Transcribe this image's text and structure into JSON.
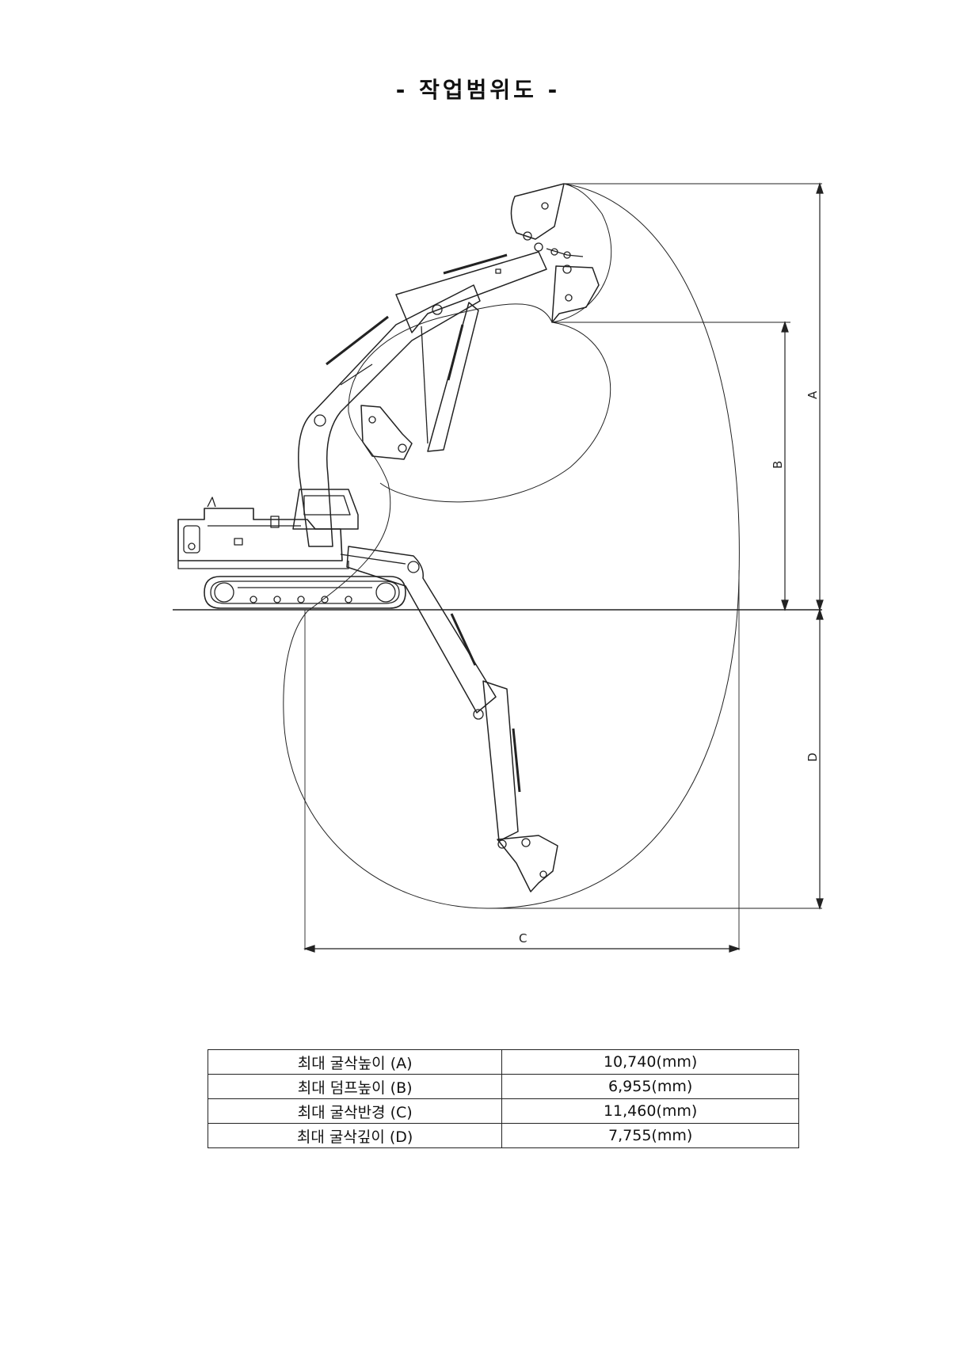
{
  "title": "- 작업범위도 -",
  "dimension_labels": {
    "a": "A",
    "b": "B",
    "c": "C",
    "d": "D"
  },
  "specs": [
    {
      "label": "최대  굴삭높이 (A)",
      "value": "10,740(mm)"
    },
    {
      "label": "최대  덤프높이 (B)",
      "value": "6,955(mm)"
    },
    {
      "label": "최대  굴삭반경 (C)",
      "value": "11,460(mm)"
    },
    {
      "label": "최대  굴삭깊이 (D)",
      "value": "7,755(mm)"
    }
  ]
}
